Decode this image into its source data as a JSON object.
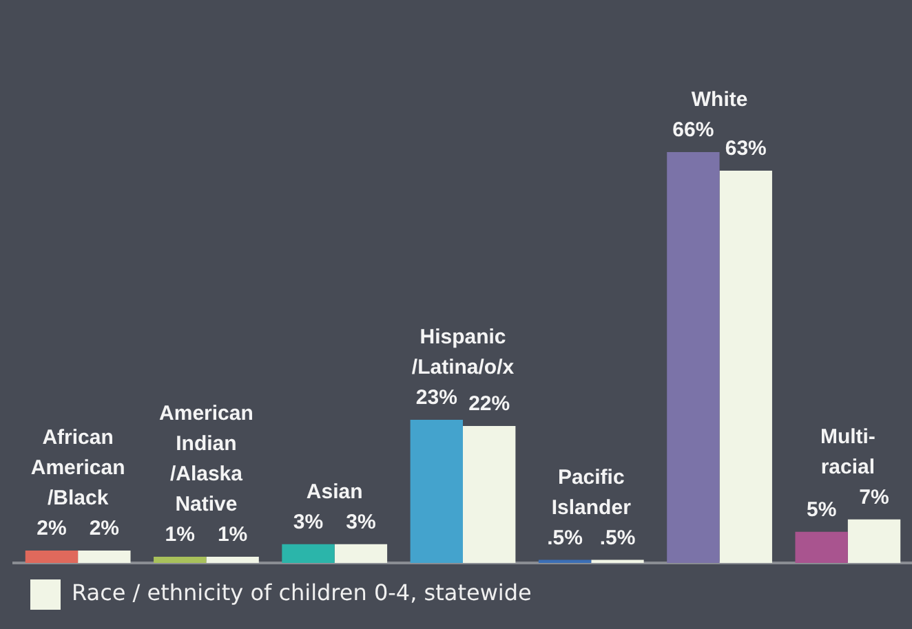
{
  "chart_data": {
    "type": "bar",
    "categories": [
      "African American /Black",
      "American Indian /Alaska Native",
      "Asian",
      "Hispanic /Latina/o/x",
      "Pacific Islander",
      "White",
      "Multi-racial"
    ],
    "series": [
      {
        "colors": [
          "#e0695c",
          "#a9c15b",
          "#2bb5aa",
          "#44a3cd",
          "#3b6fb6",
          "#7b73a8",
          "#a9548f"
        ],
        "values": [
          2,
          1,
          3,
          23,
          0.5,
          66,
          5
        ],
        "value_labels": [
          "2%",
          "1%",
          "3%",
          "23%",
          ".5%",
          "66%",
          "5%"
        ]
      },
      {
        "name": "Race / ethnicity of children 0-4, statewide",
        "color": "#f1f5e6",
        "values": [
          2,
          1,
          3,
          22,
          0.5,
          63,
          7
        ],
        "value_labels": [
          "2%",
          "1%",
          "3%",
          "22%",
          ".5%",
          "63%",
          "7%"
        ]
      }
    ],
    "legend": "bottom left"
  }
}
